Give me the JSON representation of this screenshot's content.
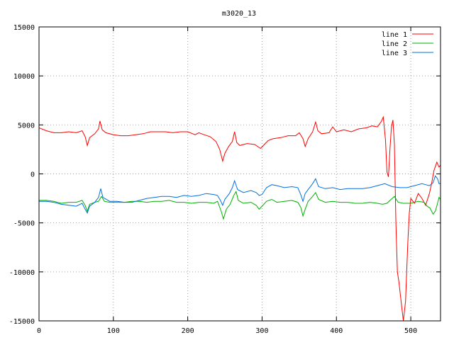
{
  "chart_data": {
    "type": "line",
    "title": "m3020_13",
    "xlabel": "",
    "ylabel": "",
    "xlim": [
      0,
      540
    ],
    "ylim": [
      -15000,
      15000
    ],
    "x_ticks": [
      0,
      100,
      200,
      300,
      400,
      500
    ],
    "y_ticks": [
      -15000,
      -10000,
      -5000,
      0,
      5000,
      10000,
      15000
    ],
    "x_tick_labels": [
      "0",
      "100",
      "200",
      "300",
      "400",
      "500"
    ],
    "y_tick_labels": [
      "-15000",
      "-10000",
      "-5000",
      "0",
      "5000",
      "10000",
      "15000"
    ],
    "grid": true,
    "legend_position": "top-right",
    "series": [
      {
        "name": "line 1",
        "color": "#ff0000",
        "points": [
          [
            0,
            4700
          ],
          [
            10,
            4400
          ],
          [
            20,
            4200
          ],
          [
            30,
            4200
          ],
          [
            40,
            4300
          ],
          [
            50,
            4200
          ],
          [
            58,
            4400
          ],
          [
            62,
            3800
          ],
          [
            65,
            2900
          ],
          [
            68,
            3700
          ],
          [
            75,
            4100
          ],
          [
            80,
            4600
          ],
          [
            82,
            5400
          ],
          [
            85,
            4500
          ],
          [
            90,
            4200
          ],
          [
            100,
            4000
          ],
          [
            110,
            3900
          ],
          [
            120,
            3900
          ],
          [
            130,
            4000
          ],
          [
            140,
            4100
          ],
          [
            150,
            4300
          ],
          [
            160,
            4300
          ],
          [
            170,
            4300
          ],
          [
            180,
            4200
          ],
          [
            190,
            4300
          ],
          [
            200,
            4300
          ],
          [
            210,
            4000
          ],
          [
            215,
            4200
          ],
          [
            222,
            4000
          ],
          [
            230,
            3800
          ],
          [
            238,
            3300
          ],
          [
            243,
            2500
          ],
          [
            247,
            1300
          ],
          [
            250,
            2100
          ],
          [
            255,
            2800
          ],
          [
            260,
            3300
          ],
          [
            263,
            4300
          ],
          [
            266,
            3200
          ],
          [
            270,
            2900
          ],
          [
            280,
            3100
          ],
          [
            290,
            3000
          ],
          [
            298,
            2600
          ],
          [
            303,
            3000
          ],
          [
            308,
            3400
          ],
          [
            315,
            3600
          ],
          [
            325,
            3700
          ],
          [
            335,
            3900
          ],
          [
            345,
            3900
          ],
          [
            350,
            4200
          ],
          [
            355,
            3600
          ],
          [
            358,
            2800
          ],
          [
            362,
            3600
          ],
          [
            368,
            4300
          ],
          [
            372,
            5300
          ],
          [
            375,
            4400
          ],
          [
            380,
            4100
          ],
          [
            390,
            4200
          ],
          [
            395,
            4800
          ],
          [
            400,
            4300
          ],
          [
            410,
            4500
          ],
          [
            420,
            4300
          ],
          [
            430,
            4600
          ],
          [
            440,
            4700
          ],
          [
            448,
            4900
          ],
          [
            455,
            4800
          ],
          [
            460,
            5300
          ],
          [
            463,
            5800
          ],
          [
            466,
            3500
          ],
          [
            468,
            200
          ],
          [
            470,
            -300
          ],
          [
            472,
            2500
          ],
          [
            474,
            4800
          ],
          [
            476,
            5500
          ],
          [
            478,
            3000
          ],
          [
            480,
            -5000
          ],
          [
            482,
            -10000
          ],
          [
            484,
            -11000
          ],
          [
            487,
            -13000
          ],
          [
            490,
            -15000
          ],
          [
            493,
            -13000
          ],
          [
            496,
            -7000
          ],
          [
            498,
            -4000
          ],
          [
            500,
            -2500
          ],
          [
            505,
            -3000
          ],
          [
            510,
            -2000
          ],
          [
            515,
            -2500
          ],
          [
            520,
            -3200
          ],
          [
            525,
            -2000
          ],
          [
            528,
            -1000
          ],
          [
            531,
            300
          ],
          [
            535,
            1200
          ],
          [
            538,
            700
          ],
          [
            540,
            900
          ]
        ]
      },
      {
        "name": "line 2",
        "color": "#00b000",
        "points": [
          [
            0,
            -2700
          ],
          [
            10,
            -2700
          ],
          [
            20,
            -2800
          ],
          [
            30,
            -3000
          ],
          [
            40,
            -2900
          ],
          [
            50,
            -2900
          ],
          [
            58,
            -2700
          ],
          [
            62,
            -3200
          ],
          [
            65,
            -3800
          ],
          [
            68,
            -3100
          ],
          [
            75,
            -2900
          ],
          [
            80,
            -2800
          ],
          [
            84,
            -2300
          ],
          [
            88,
            -2800
          ],
          [
            95,
            -2900
          ],
          [
            105,
            -2900
          ],
          [
            115,
            -2900
          ],
          [
            125,
            -2800
          ],
          [
            135,
            -2800
          ],
          [
            145,
            -2900
          ],
          [
            155,
            -2800
          ],
          [
            165,
            -2800
          ],
          [
            175,
            -2700
          ],
          [
            185,
            -2900
          ],
          [
            195,
            -2900
          ],
          [
            205,
            -3000
          ],
          [
            215,
            -2900
          ],
          [
            225,
            -2900
          ],
          [
            235,
            -3000
          ],
          [
            240,
            -2800
          ],
          [
            245,
            -3800
          ],
          [
            248,
            -4600
          ],
          [
            252,
            -3600
          ],
          [
            257,
            -3100
          ],
          [
            262,
            -2200
          ],
          [
            265,
            -1800
          ],
          [
            268,
            -2700
          ],
          [
            275,
            -3000
          ],
          [
            285,
            -2900
          ],
          [
            292,
            -3200
          ],
          [
            296,
            -3600
          ],
          [
            300,
            -3300
          ],
          [
            306,
            -2800
          ],
          [
            313,
            -2600
          ],
          [
            320,
            -2900
          ],
          [
            330,
            -2800
          ],
          [
            340,
            -2700
          ],
          [
            348,
            -2900
          ],
          [
            352,
            -3400
          ],
          [
            355,
            -4300
          ],
          [
            358,
            -3600
          ],
          [
            362,
            -2800
          ],
          [
            368,
            -2300
          ],
          [
            372,
            -1900
          ],
          [
            376,
            -2600
          ],
          [
            385,
            -2900
          ],
          [
            395,
            -2800
          ],
          [
            405,
            -2900
          ],
          [
            415,
            -2900
          ],
          [
            425,
            -3000
          ],
          [
            435,
            -3000
          ],
          [
            445,
            -2900
          ],
          [
            455,
            -3000
          ],
          [
            462,
            -3100
          ],
          [
            468,
            -3000
          ],
          [
            472,
            -2700
          ],
          [
            478,
            -2300
          ],
          [
            483,
            -2900
          ],
          [
            490,
            -3000
          ],
          [
            500,
            -3000
          ],
          [
            510,
            -2800
          ],
          [
            518,
            -2900
          ],
          [
            522,
            -3300
          ],
          [
            526,
            -3500
          ],
          [
            530,
            -4100
          ],
          [
            533,
            -3800
          ],
          [
            536,
            -3000
          ],
          [
            538,
            -2400
          ],
          [
            540,
            -2600
          ]
        ]
      },
      {
        "name": "line 3",
        "color": "#0070e0",
        "points": [
          [
            0,
            -2800
          ],
          [
            10,
            -2800
          ],
          [
            20,
            -2900
          ],
          [
            30,
            -3100
          ],
          [
            40,
            -3200
          ],
          [
            50,
            -3300
          ],
          [
            58,
            -3000
          ],
          [
            62,
            -3600
          ],
          [
            65,
            -4000
          ],
          [
            68,
            -3300
          ],
          [
            75,
            -2900
          ],
          [
            80,
            -2400
          ],
          [
            83,
            -1500
          ],
          [
            86,
            -2400
          ],
          [
            95,
            -2800
          ],
          [
            105,
            -2800
          ],
          [
            115,
            -2900
          ],
          [
            125,
            -2900
          ],
          [
            135,
            -2700
          ],
          [
            145,
            -2500
          ],
          [
            155,
            -2400
          ],
          [
            165,
            -2300
          ],
          [
            175,
            -2300
          ],
          [
            185,
            -2400
          ],
          [
            195,
            -2200
          ],
          [
            205,
            -2300
          ],
          [
            215,
            -2200
          ],
          [
            225,
            -2000
          ],
          [
            235,
            -2100
          ],
          [
            240,
            -2200
          ],
          [
            244,
            -2700
          ],
          [
            247,
            -3200
          ],
          [
            250,
            -2600
          ],
          [
            256,
            -2000
          ],
          [
            260,
            -1400
          ],
          [
            263,
            -700
          ],
          [
            267,
            -1600
          ],
          [
            275,
            -1900
          ],
          [
            285,
            -1700
          ],
          [
            292,
            -1900
          ],
          [
            296,
            -2200
          ],
          [
            300,
            -2100
          ],
          [
            306,
            -1400
          ],
          [
            313,
            -1100
          ],
          [
            320,
            -1200
          ],
          [
            330,
            -1400
          ],
          [
            340,
            -1300
          ],
          [
            348,
            -1400
          ],
          [
            352,
            -2100
          ],
          [
            355,
            -2800
          ],
          [
            358,
            -2000
          ],
          [
            362,
            -1600
          ],
          [
            368,
            -1000
          ],
          [
            372,
            -500
          ],
          [
            376,
            -1300
          ],
          [
            385,
            -1500
          ],
          [
            395,
            -1400
          ],
          [
            405,
            -1600
          ],
          [
            415,
            -1500
          ],
          [
            425,
            -1500
          ],
          [
            435,
            -1500
          ],
          [
            445,
            -1400
          ],
          [
            455,
            -1200
          ],
          [
            465,
            -1000
          ],
          [
            475,
            -1300
          ],
          [
            485,
            -1400
          ],
          [
            495,
            -1400
          ],
          [
            505,
            -1200
          ],
          [
            515,
            -1000
          ],
          [
            520,
            -1100
          ],
          [
            525,
            -1200
          ],
          [
            530,
            -900
          ],
          [
            533,
            -200
          ],
          [
            536,
            -500
          ],
          [
            538,
            -1000
          ],
          [
            540,
            -1000
          ]
        ]
      }
    ]
  }
}
